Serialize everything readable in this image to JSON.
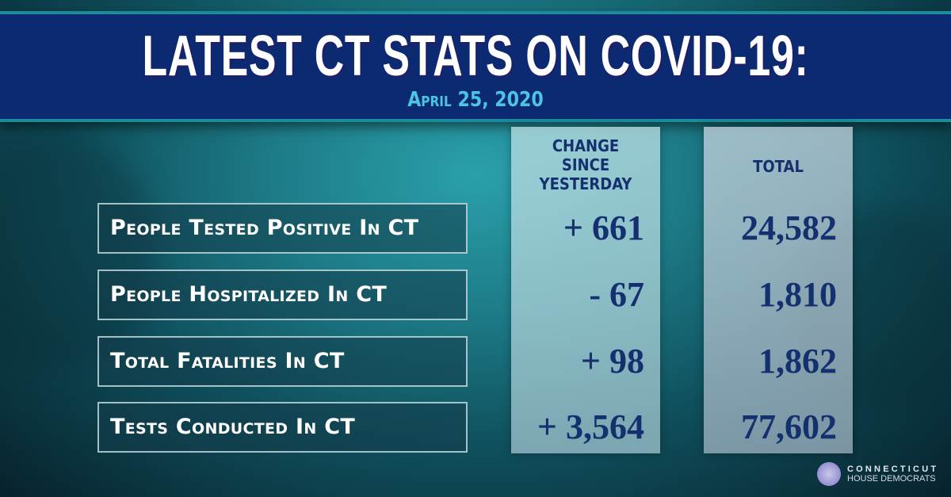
{
  "header": {
    "title": "LATEST CT STATS ON COVID-19:",
    "date": "April 25, 2020"
  },
  "columns": {
    "change": "CHANGE SINCE YESTERDAY",
    "total": "TOTAL"
  },
  "rows": [
    {
      "label": "People Tested Positive In CT",
      "change": "+ 661",
      "total": "24,582"
    },
    {
      "label": "People Hospitalized In CT",
      "change": "- 67",
      "total": "1,810"
    },
    {
      "label": "Total Fatalities In CT",
      "change": "+ 98",
      "total": "1,862"
    },
    {
      "label": "Tests Conducted In CT",
      "change": "+ 3,564",
      "total": "77,602"
    }
  ],
  "logo": {
    "line1": "CONNECTICUT",
    "line2": "HOUSE DEMOCRATS"
  },
  "colors": {
    "banner": "#0c2a72",
    "date": "#4cc4e4",
    "values": "#14306e"
  }
}
